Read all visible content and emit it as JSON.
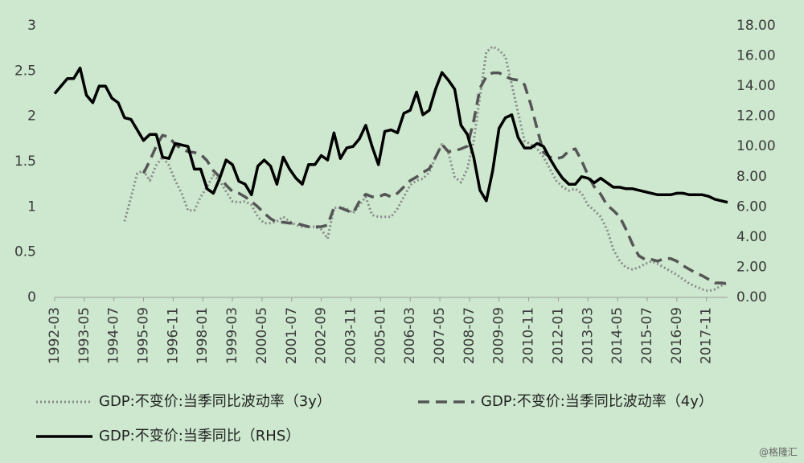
{
  "chart_data": {
    "type": "line",
    "x": [
      "1992-03",
      "1992-06",
      "1992-09",
      "1992-12",
      "1993-03",
      "1993-06",
      "1993-09",
      "1993-12",
      "1994-03",
      "1994-06",
      "1994-09",
      "1994-12",
      "1995-03",
      "1995-06",
      "1995-09",
      "1995-12",
      "1996-03",
      "1996-06",
      "1996-09",
      "1996-12",
      "1997-03",
      "1997-06",
      "1997-09",
      "1997-12",
      "1998-03",
      "1998-06",
      "1998-09",
      "1998-12",
      "1999-03",
      "1999-06",
      "1999-09",
      "1999-12",
      "2000-03",
      "2000-06",
      "2000-09",
      "2000-12",
      "2001-03",
      "2001-06",
      "2001-09",
      "2001-12",
      "2002-03",
      "2002-06",
      "2002-09",
      "2002-12",
      "2003-03",
      "2003-06",
      "2003-09",
      "2003-12",
      "2004-03",
      "2004-06",
      "2004-09",
      "2004-12",
      "2005-03",
      "2005-06",
      "2005-09",
      "2005-12",
      "2006-03",
      "2006-06",
      "2006-09",
      "2006-12",
      "2007-03",
      "2007-06",
      "2007-09",
      "2007-12",
      "2008-03",
      "2008-06",
      "2008-09",
      "2008-12",
      "2009-03",
      "2009-06",
      "2009-09",
      "2009-12",
      "2010-03",
      "2010-06",
      "2010-09",
      "2010-12",
      "2011-03",
      "2011-06",
      "2011-09",
      "2011-12",
      "2012-03",
      "2012-06",
      "2012-09",
      "2012-12",
      "2013-03",
      "2013-06",
      "2013-09",
      "2013-12",
      "2014-03",
      "2014-06",
      "2014-09",
      "2014-12",
      "2015-03",
      "2015-06",
      "2015-09",
      "2015-12",
      "2016-03",
      "2016-06",
      "2016-09",
      "2016-12",
      "2017-03",
      "2017-06",
      "2017-09",
      "2017-12",
      "2018-03",
      "2018-06",
      "2018-09"
    ],
    "xlim": [
      "1992-03",
      "2018-09"
    ],
    "xticks": [
      "1992-03",
      "1993-05",
      "1994-07",
      "1995-09",
      "1996-11",
      "1998-01",
      "1999-03",
      "2000-05",
      "2001-07",
      "2002-09",
      "2003-11",
      "2005-01",
      "2006-03",
      "2007-05",
      "2008-07",
      "2009-09",
      "2010-11",
      "2012-01",
      "2013-03",
      "2014-05",
      "2015-07",
      "2016-09",
      "2017-11"
    ],
    "ylim": [
      0,
      3
    ],
    "yticks": [
      0,
      0.5,
      1,
      1.5,
      2,
      2.5,
      3
    ],
    "y2lim": [
      0,
      18
    ],
    "y2ticks": [
      {
        "value": 0,
        "label": "0.00"
      },
      {
        "value": 2,
        "label": "2.00"
      },
      {
        "value": 4,
        "label": "4.00"
      },
      {
        "value": 6,
        "label": "6.00"
      },
      {
        "value": 8,
        "label": "8.00"
      },
      {
        "value": 10,
        "label": "10.00"
      },
      {
        "value": 12,
        "label": "12.00"
      },
      {
        "value": 14,
        "label": "14.00"
      },
      {
        "value": 16,
        "label": "16.00"
      },
      {
        "value": 18,
        "label": "18.00"
      }
    ],
    "grid": false,
    "series": [
      {
        "name": "GDP:不变价:当季同比波动率（3y）",
        "color": "#8a8a8a",
        "style": "dotted",
        "values": [
          null,
          null,
          null,
          null,
          null,
          null,
          null,
          null,
          null,
          null,
          null,
          0.84,
          1.1,
          1.37,
          1.4,
          1.29,
          1.46,
          1.55,
          1.46,
          1.29,
          1.15,
          0.96,
          0.96,
          1.11,
          1.22,
          1.35,
          1.29,
          1.17,
          1.06,
          1.05,
          1.06,
          1.02,
          0.89,
          0.82,
          0.82,
          0.84,
          0.89,
          0.84,
          0.8,
          0.78,
          0.78,
          0.78,
          0.75,
          0.65,
          0.99,
          0.99,
          0.98,
          0.93,
          1.02,
          1.11,
          0.91,
          0.89,
          0.89,
          0.89,
          0.98,
          1.11,
          1.24,
          1.29,
          1.31,
          1.38,
          1.55,
          1.69,
          1.6,
          1.33,
          1.27,
          1.42,
          1.73,
          2.22,
          2.71,
          2.77,
          2.73,
          2.66,
          2.35,
          2.04,
          1.73,
          1.69,
          1.64,
          1.55,
          1.42,
          1.29,
          1.22,
          1.18,
          1.2,
          1.15,
          1.02,
          0.96,
          0.89,
          0.75,
          0.53,
          0.4,
          0.33,
          0.31,
          0.33,
          0.37,
          0.4,
          0.37,
          0.33,
          0.29,
          0.25,
          0.2,
          0.15,
          0.12,
          0.09,
          0.07,
          0.09,
          0.13,
          0.16
        ]
      },
      {
        "name": "GDP:不变价:当季同比波动率（4y）",
        "color": "#555555",
        "style": "dashed",
        "values": [
          null,
          null,
          null,
          null,
          null,
          null,
          null,
          null,
          null,
          null,
          null,
          null,
          null,
          null,
          1.37,
          1.51,
          1.67,
          1.79,
          1.77,
          1.69,
          1.64,
          1.61,
          1.6,
          1.58,
          1.51,
          1.4,
          1.33,
          1.24,
          1.17,
          1.15,
          1.11,
          1.06,
          1.0,
          0.93,
          0.87,
          0.83,
          0.83,
          0.82,
          0.82,
          0.8,
          0.78,
          0.78,
          0.78,
          0.8,
          0.99,
          0.99,
          0.96,
          0.93,
          1.06,
          1.14,
          1.11,
          1.11,
          1.14,
          1.11,
          1.15,
          1.22,
          1.29,
          1.33,
          1.38,
          1.42,
          1.55,
          1.69,
          1.61,
          1.62,
          1.64,
          1.67,
          1.95,
          2.31,
          2.44,
          2.48,
          2.48,
          2.44,
          2.41,
          2.4,
          2.35,
          2.13,
          1.86,
          1.6,
          1.55,
          1.53,
          1.55,
          1.62,
          1.64,
          1.51,
          1.35,
          1.22,
          1.14,
          1.02,
          0.96,
          0.89,
          0.75,
          0.59,
          0.46,
          0.42,
          0.42,
          0.4,
          0.43,
          0.43,
          0.4,
          0.35,
          0.31,
          0.27,
          0.24,
          0.2,
          0.16,
          0.16,
          0.15
        ]
      },
      {
        "name": "GDP:不变价:当季同比（RHS）",
        "color": "#000000",
        "style": "solid",
        "axis": "y2",
        "values": [
          13.5,
          14.0,
          14.5,
          14.5,
          15.2,
          13.4,
          12.9,
          14.0,
          14.0,
          13.2,
          12.9,
          11.9,
          11.8,
          11.1,
          10.4,
          10.8,
          10.8,
          9.3,
          9.2,
          10.2,
          10.1,
          10.0,
          8.5,
          8.5,
          7.2,
          6.9,
          7.9,
          9.1,
          8.8,
          7.7,
          7.5,
          6.8,
          8.7,
          9.1,
          8.7,
          7.5,
          9.3,
          8.5,
          7.9,
          7.5,
          8.8,
          8.8,
          9.4,
          9.1,
          10.9,
          9.2,
          9.9,
          10.0,
          10.5,
          11.4,
          10.0,
          8.8,
          11.0,
          11.1,
          10.9,
          12.2,
          12.4,
          13.6,
          12.1,
          12.4,
          13.8,
          14.9,
          14.4,
          13.8,
          11.4,
          10.8,
          9.3,
          7.1,
          6.4,
          8.4,
          11.2,
          11.9,
          12.1,
          10.6,
          9.9,
          9.9,
          10.2,
          10.0,
          9.2,
          8.5,
          7.9,
          7.5,
          7.5,
          8.0,
          7.9,
          7.6,
          7.9,
          7.6,
          7.3,
          7.3,
          7.2,
          7.2,
          7.1,
          7.0,
          6.9,
          6.8,
          6.8,
          6.8,
          6.9,
          6.9,
          6.8,
          6.8,
          6.8,
          6.7,
          6.5,
          6.4,
          6.3
        ]
      }
    ],
    "watermark": "@格隆汇"
  }
}
